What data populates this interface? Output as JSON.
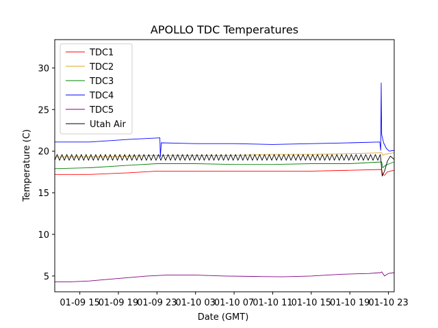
{
  "chart_data": {
    "type": "line",
    "title": "APOLLO TDC Temperatures",
    "xlabel": "Date (GMT)",
    "ylabel": "Temperature (C)",
    "xlim": [
      12.4,
      47.6
    ],
    "ylim": [
      3.1,
      33.4
    ],
    "xticks": [
      {
        "value": 15,
        "label": "01-09 15"
      },
      {
        "value": 19,
        "label": "01-09 19"
      },
      {
        "value": 23,
        "label": "01-09 23"
      },
      {
        "value": 27,
        "label": "01-10 03"
      },
      {
        "value": 31,
        "label": "01-10 07"
      },
      {
        "value": 35,
        "label": "01-10 11"
      },
      {
        "value": 39,
        "label": "01-10 15"
      },
      {
        "value": 43,
        "label": "01-10 19"
      },
      {
        "value": 47,
        "label": "01-10 23"
      }
    ],
    "yticks": [
      5,
      10,
      15,
      20,
      25,
      30
    ],
    "legend_position": "top-left",
    "series": [
      {
        "name": "TDC1",
        "color": "#ff0000",
        "points": [
          [
            12.4,
            17.2
          ],
          [
            16,
            17.2
          ],
          [
            20,
            17.4
          ],
          [
            23,
            17.6
          ],
          [
            27,
            17.6
          ],
          [
            31,
            17.6
          ],
          [
            35,
            17.6
          ],
          [
            39,
            17.6
          ],
          [
            43,
            17.7
          ],
          [
            46.3,
            17.8
          ],
          [
            46.4,
            17.2
          ],
          [
            46.6,
            17.1
          ],
          [
            46.9,
            17.5
          ],
          [
            47.2,
            17.6
          ],
          [
            47.6,
            17.7
          ]
        ]
      },
      {
        "name": "TDC2",
        "color": "#daa520",
        "points": [
          [
            12.4,
            19.3
          ],
          [
            16,
            19.3
          ],
          [
            20,
            19.4
          ],
          [
            23,
            19.5
          ],
          [
            27,
            19.5
          ],
          [
            31,
            19.5
          ],
          [
            35,
            19.6
          ],
          [
            39,
            19.6
          ],
          [
            43,
            19.7
          ],
          [
            46.3,
            19.8
          ],
          [
            46.4,
            19.5
          ],
          [
            46.6,
            19.6
          ],
          [
            47.0,
            19.7
          ],
          [
            47.6,
            19.8
          ]
        ]
      },
      {
        "name": "TDC3",
        "color": "#008000",
        "points": [
          [
            12.4,
            17.9
          ],
          [
            16,
            18.0
          ],
          [
            20,
            18.3
          ],
          [
            23,
            18.5
          ],
          [
            27,
            18.5
          ],
          [
            31,
            18.4
          ],
          [
            35,
            18.4
          ],
          [
            39,
            18.5
          ],
          [
            43,
            18.5
          ],
          [
            46.3,
            18.7
          ],
          [
            46.4,
            18.0
          ],
          [
            46.7,
            18.3
          ],
          [
            47.1,
            18.5
          ],
          [
            47.6,
            18.7
          ]
        ]
      },
      {
        "name": "TDC4",
        "color": "#0000ff",
        "points": [
          [
            12.4,
            21.1
          ],
          [
            16,
            21.1
          ],
          [
            20,
            21.4
          ],
          [
            23.3,
            21.6
          ],
          [
            23.35,
            19.3
          ],
          [
            23.45,
            21.0
          ],
          [
            27,
            20.9
          ],
          [
            31,
            20.9
          ],
          [
            35,
            20.8
          ],
          [
            39,
            20.9
          ],
          [
            43,
            21.0
          ],
          [
            46.1,
            21.1
          ],
          [
            46.2,
            20.1
          ],
          [
            46.25,
            28.2
          ],
          [
            46.3,
            22.0
          ],
          [
            46.5,
            21.0
          ],
          [
            46.8,
            20.3
          ],
          [
            47.1,
            20.0
          ],
          [
            47.6,
            20.1
          ]
        ]
      },
      {
        "name": "TDC5",
        "color": "#800080",
        "points": [
          [
            12.4,
            4.3
          ],
          [
            14,
            4.3
          ],
          [
            16,
            4.4
          ],
          [
            18,
            4.6
          ],
          [
            20,
            4.8
          ],
          [
            22,
            5.0
          ],
          [
            24,
            5.1
          ],
          [
            27,
            5.1
          ],
          [
            30,
            5.0
          ],
          [
            33,
            4.95
          ],
          [
            36,
            4.9
          ],
          [
            39,
            5.0
          ],
          [
            42,
            5.2
          ],
          [
            45,
            5.3
          ],
          [
            46.2,
            5.4
          ],
          [
            46.3,
            5.5
          ],
          [
            46.6,
            5.0
          ],
          [
            47,
            5.3
          ],
          [
            47.6,
            5.4
          ]
        ]
      },
      {
        "name": "Utah Air",
        "color": "#000000",
        "oscillation": {
          "x_start": 12.4,
          "x_end": 46.2,
          "period": 0.5,
          "low": 18.9,
          "high": 19.6
        },
        "points": [
          [
            46.2,
            19.2
          ],
          [
            46.35,
            17.0
          ],
          [
            46.6,
            17.6
          ],
          [
            46.9,
            18.8
          ],
          [
            47.2,
            19.4
          ],
          [
            47.6,
            19.0
          ]
        ]
      }
    ]
  }
}
